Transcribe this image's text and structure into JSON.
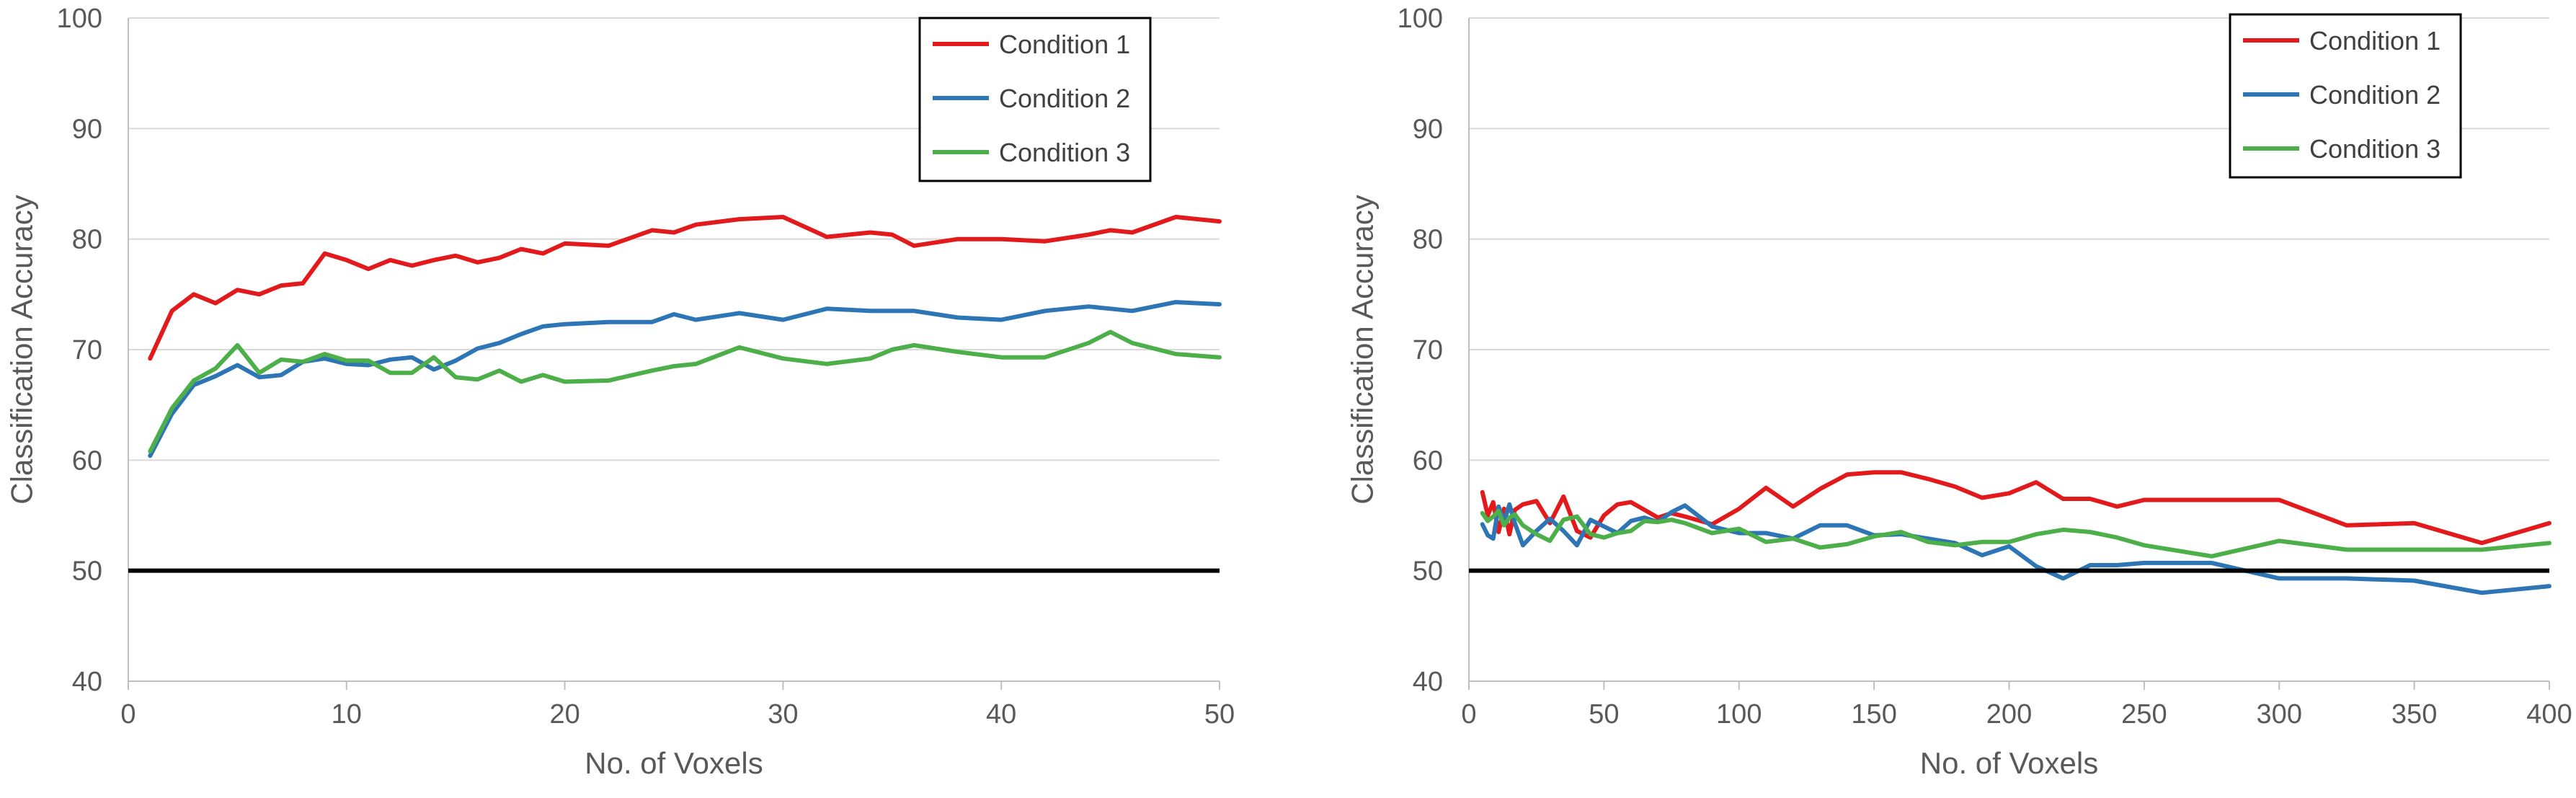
{
  "chart_data": [
    {
      "type": "line",
      "title": "",
      "xlabel": "No. of Voxels",
      "ylabel": "Classification Accuracy",
      "xlim": [
        0,
        50
      ],
      "ylim": [
        40,
        100
      ],
      "xticks": [
        0,
        10,
        20,
        30,
        40,
        50
      ],
      "yticks": [
        40,
        50,
        60,
        70,
        80,
        90,
        100
      ],
      "grid": true,
      "legend_position": "top-right",
      "reference_line": {
        "y": 50,
        "color": "#000000"
      },
      "series": [
        {
          "name": "Condition 1",
          "color": "#e31a1c",
          "x": [
            1,
            2,
            3,
            4,
            5,
            6,
            7,
            8,
            9,
            10,
            11,
            12,
            13,
            14,
            15,
            16,
            17,
            18,
            19,
            20,
            22,
            24,
            25,
            26,
            28,
            30,
            32,
            34,
            35,
            36,
            38,
            40,
            42,
            44,
            45,
            46,
            48,
            50
          ],
          "y": [
            69.2,
            73.5,
            75.0,
            74.2,
            75.4,
            75.0,
            75.8,
            76.0,
            78.7,
            78.1,
            77.3,
            78.1,
            77.6,
            78.1,
            78.5,
            77.9,
            78.3,
            79.1,
            78.7,
            79.6,
            79.4,
            80.8,
            80.6,
            81.3,
            81.8,
            82.0,
            80.2,
            80.6,
            80.4,
            79.4,
            80.0,
            80.0,
            79.8,
            80.4,
            80.8,
            80.6,
            82.0,
            81.6
          ]
        },
        {
          "name": "Condition 2",
          "color": "#2e75b6",
          "x": [
            1,
            2,
            3,
            4,
            5,
            6,
            7,
            8,
            9,
            10,
            11,
            12,
            13,
            14,
            15,
            16,
            17,
            18,
            19,
            20,
            22,
            24,
            25,
            26,
            28,
            30,
            32,
            34,
            36,
            38,
            40,
            42,
            44,
            46,
            48,
            50
          ],
          "y": [
            60.4,
            64.2,
            66.8,
            67.6,
            68.6,
            67.5,
            67.7,
            68.9,
            69.2,
            68.7,
            68.6,
            69.1,
            69.3,
            68.2,
            69.0,
            70.1,
            70.6,
            71.4,
            72.1,
            72.3,
            72.5,
            72.5,
            73.2,
            72.7,
            73.3,
            72.7,
            73.7,
            73.5,
            73.5,
            72.9,
            72.7,
            73.5,
            73.9,
            73.5,
            74.3,
            74.1
          ]
        },
        {
          "name": "Condition 3",
          "color": "#4daf4a",
          "x": [
            1,
            2,
            3,
            4,
            5,
            6,
            7,
            8,
            9,
            10,
            11,
            12,
            13,
            14,
            15,
            16,
            17,
            18,
            19,
            20,
            22,
            24,
            25,
            26,
            28,
            30,
            32,
            34,
            35,
            36,
            38,
            40,
            42,
            44,
            45,
            46,
            48,
            50
          ],
          "y": [
            60.8,
            64.7,
            67.2,
            68.3,
            70.4,
            67.9,
            69.1,
            68.9,
            69.6,
            69.0,
            69.0,
            67.9,
            67.9,
            69.3,
            67.5,
            67.3,
            68.1,
            67.1,
            67.7,
            67.1,
            67.2,
            68.1,
            68.5,
            68.7,
            70.2,
            69.2,
            68.7,
            69.2,
            70.0,
            70.4,
            69.8,
            69.3,
            69.3,
            70.6,
            71.6,
            70.6,
            69.6,
            69.3
          ]
        }
      ]
    },
    {
      "type": "line",
      "title": "",
      "xlabel": "No. of Voxels",
      "ylabel": "Classification Accuracy",
      "xlim": [
        0,
        400
      ],
      "ylim": [
        40,
        100
      ],
      "xticks": [
        0,
        50,
        100,
        150,
        200,
        250,
        300,
        350,
        400
      ],
      "yticks": [
        40,
        50,
        60,
        70,
        80,
        90,
        100
      ],
      "grid": true,
      "legend_position": "top-right",
      "reference_line": {
        "y": 50,
        "color": "#000000"
      },
      "series": [
        {
          "name": "Condition 1",
          "color": "#e31a1c",
          "x": [
            5,
            7,
            9,
            11,
            13,
            15,
            17,
            20,
            25,
            30,
            35,
            40,
            45,
            50,
            55,
            60,
            65,
            70,
            75,
            80,
            90,
            100,
            110,
            120,
            130,
            140,
            150,
            160,
            170,
            180,
            190,
            200,
            210,
            220,
            230,
            240,
            250,
            275,
            300,
            325,
            350,
            375,
            400
          ],
          "y": [
            57.1,
            55.0,
            56.2,
            53.5,
            55.6,
            53.3,
            55.5,
            56.0,
            56.3,
            54.3,
            56.7,
            53.6,
            53.0,
            55.0,
            56.0,
            56.2,
            55.5,
            54.8,
            55.2,
            54.9,
            54.2,
            55.6,
            57.5,
            55.8,
            57.4,
            58.7,
            58.9,
            58.9,
            58.3,
            57.6,
            56.6,
            57.0,
            58.0,
            56.5,
            56.5,
            55.8,
            56.4,
            56.4,
            56.4,
            54.1,
            54.3,
            52.5,
            54.3
          ]
        },
        {
          "name": "Condition 2",
          "color": "#2e75b6",
          "x": [
            5,
            7,
            9,
            11,
            13,
            15,
            17,
            20,
            25,
            30,
            35,
            40,
            45,
            50,
            55,
            60,
            65,
            70,
            75,
            80,
            90,
            100,
            110,
            120,
            130,
            140,
            150,
            160,
            170,
            180,
            190,
            200,
            210,
            220,
            230,
            240,
            250,
            275,
            300,
            325,
            350,
            375,
            400
          ],
          "y": [
            54.2,
            53.2,
            52.9,
            55.8,
            54.4,
            56.0,
            54.3,
            52.3,
            53.6,
            54.7,
            53.6,
            52.3,
            54.6,
            54.0,
            53.4,
            54.5,
            54.8,
            54.4,
            55.3,
            55.9,
            54.0,
            53.4,
            53.4,
            52.9,
            54.1,
            54.1,
            53.2,
            53.3,
            52.9,
            52.5,
            51.4,
            52.2,
            50.4,
            49.3,
            50.5,
            50.5,
            50.7,
            50.7,
            49.3,
            49.3,
            49.1,
            48.0,
            48.6
          ]
        },
        {
          "name": "Condition 3",
          "color": "#4daf4a",
          "x": [
            5,
            7,
            9,
            11,
            13,
            15,
            17,
            20,
            25,
            30,
            35,
            40,
            45,
            50,
            55,
            60,
            65,
            70,
            75,
            80,
            90,
            100,
            110,
            120,
            130,
            140,
            150,
            160,
            170,
            180,
            190,
            200,
            210,
            220,
            230,
            240,
            250,
            275,
            300,
            325,
            350,
            375,
            400
          ],
          "y": [
            55.2,
            54.5,
            54.9,
            55.4,
            54.1,
            54.8,
            55.1,
            54.1,
            53.3,
            52.7,
            54.6,
            54.9,
            53.3,
            53.0,
            53.4,
            53.6,
            54.5,
            54.4,
            54.6,
            54.3,
            53.4,
            53.8,
            52.6,
            52.9,
            52.1,
            52.4,
            53.1,
            53.5,
            52.6,
            52.3,
            52.6,
            52.6,
            53.3,
            53.7,
            53.5,
            53.0,
            52.3,
            51.3,
            52.7,
            51.9,
            51.9,
            51.9,
            52.5
          ]
        }
      ]
    }
  ]
}
